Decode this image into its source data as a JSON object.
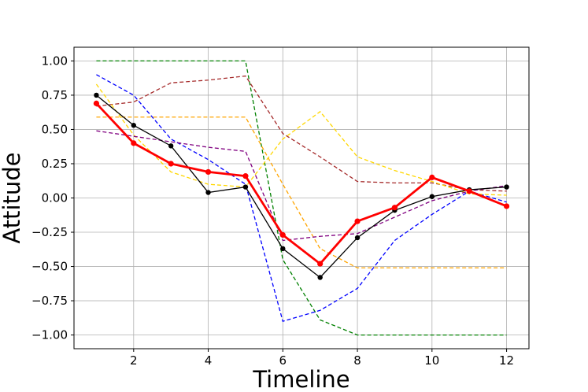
{
  "chart_data": {
    "type": "line",
    "xlabel": "Timeline",
    "ylabel": "Attitude",
    "xlim": [
      0.4,
      12.6
    ],
    "ylim": [
      -1.1,
      1.1
    ],
    "xticks": [
      2,
      4,
      6,
      8,
      10,
      12
    ],
    "xtick_labels": [
      "2",
      "4",
      "6",
      "8",
      "10",
      "12"
    ],
    "yticks": [
      1.0,
      0.75,
      0.5,
      0.25,
      0.0,
      -0.25,
      -0.5,
      -0.75,
      -1.0
    ],
    "ytick_labels": [
      "1.00",
      "0.75",
      "0.50",
      "0.25",
      "0.00",
      "−0.25",
      "−0.50",
      "−0.75",
      "−1.00"
    ],
    "grid": true,
    "x": [
      1,
      2,
      3,
      4,
      5,
      6,
      7,
      8,
      9,
      10,
      11,
      12
    ],
    "series": [
      {
        "color": "#008000",
        "style": "dashed",
        "values": [
          1.0,
          1.0,
          1.0,
          1.0,
          1.0,
          -0.45,
          -0.89,
          -1.0,
          -1.0,
          -1.0,
          -1.0,
          -1.0
        ]
      },
      {
        "color": "#0000ff",
        "style": "dashed",
        "values": [
          0.9,
          0.75,
          0.43,
          0.28,
          0.1,
          -0.9,
          -0.82,
          -0.66,
          -0.31,
          -0.12,
          0.05,
          -0.03
        ]
      },
      {
        "color": "#a52a2a",
        "style": "dashed",
        "values": [
          0.67,
          0.7,
          0.84,
          0.86,
          0.89,
          0.47,
          0.3,
          0.12,
          0.11,
          0.11,
          0.06,
          0.05
        ]
      },
      {
        "color": "#ffa500",
        "style": "dashed",
        "values": [
          0.59,
          0.59,
          0.59,
          0.59,
          0.59,
          0.1,
          -0.37,
          -0.51,
          -0.51,
          -0.51,
          -0.51,
          -0.51
        ]
      },
      {
        "color": "#ffd700",
        "style": "dashed",
        "values": [
          0.83,
          0.46,
          0.19,
          0.1,
          0.08,
          0.43,
          0.63,
          0.3,
          0.2,
          0.12,
          0.03,
          0.02
        ]
      },
      {
        "color": "#800080",
        "style": "dashed",
        "values": [
          0.49,
          0.45,
          0.41,
          0.37,
          0.34,
          -0.31,
          -0.28,
          -0.26,
          -0.14,
          -0.02,
          0.05,
          0.09
        ]
      },
      {
        "color": "#000000",
        "style": "solid",
        "markers": true,
        "values": [
          0.75,
          0.53,
          0.38,
          0.04,
          0.08,
          -0.37,
          -0.58,
          -0.29,
          -0.09,
          0.01,
          0.06,
          0.08
        ]
      },
      {
        "color": "#ff0000",
        "style": "solid-thick",
        "markers": true,
        "values": [
          0.69,
          0.4,
          0.25,
          0.19,
          0.16,
          -0.27,
          -0.48,
          -0.17,
          -0.07,
          0.15,
          0.05,
          -0.06
        ]
      }
    ]
  }
}
